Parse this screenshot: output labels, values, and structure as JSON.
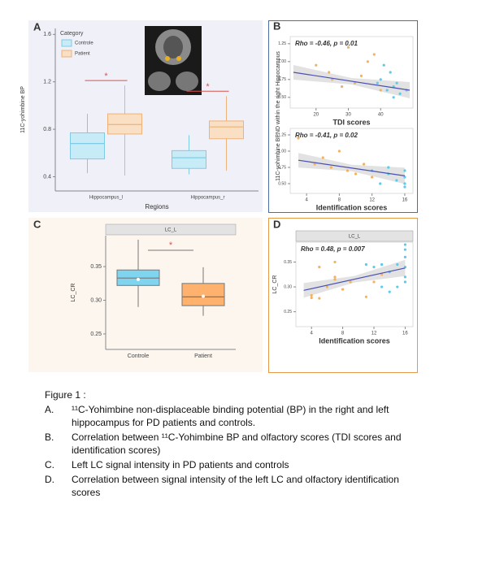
{
  "chart_data": [
    {
      "type": "boxplot",
      "panel": "A",
      "y_label": "11C-yohimbine BP",
      "x_label": "Regions",
      "categories": [
        "Hippocampus_l",
        "Hippocampus_r"
      ],
      "legend_title": "Category",
      "series": [
        {
          "name": "Controle",
          "color": "#c8ecf7",
          "edge": "#7fcbe3",
          "stats": [
            {
              "whislo": 0.43,
              "q1": 0.55,
              "med": 0.68,
              "q3": 0.77,
              "whishi": 0.93
            },
            {
              "whislo": 0.42,
              "q1": 0.47,
              "med": 0.56,
              "q3": 0.62,
              "whishi": 0.75
            }
          ]
        },
        {
          "name": "Patient",
          "color": "#f9dfc4",
          "edge": "#eeb27a",
          "stats": [
            {
              "whislo": 0.41,
              "q1": 0.76,
              "med": 0.84,
              "q3": 0.93,
              "whishi": 1.17
            },
            {
              "whislo": 0.45,
              "q1": 0.72,
              "med": 0.82,
              "q3": 0.87,
              "whishi": 1.08
            }
          ]
        }
      ],
      "significance": [
        "*",
        "*"
      ],
      "ylim": [
        0.28,
        1.65
      ],
      "yticks": [
        0.4,
        0.8,
        1.2,
        1.6
      ]
    },
    {
      "type": "scatter",
      "panel": "B",
      "annotation": "Rho = -0.46, p = 0.01",
      "x_label": "TDI scores",
      "y_label": "11C-yohimbine BPND within the right Hippocampus",
      "series": [
        {
          "color": "#f2b35c",
          "x": [
            20,
            24,
            30,
            32,
            34,
            38,
            40,
            36,
            25,
            28
          ],
          "y": [
            0.95,
            0.85,
            1.2,
            0.7,
            0.8,
            1.1,
            0.6,
            1.0,
            0.75,
            0.65
          ]
        },
        {
          "color": "#5ccbea",
          "x": [
            40,
            42,
            44,
            43,
            45,
            46,
            41,
            44,
            48,
            39
          ],
          "y": [
            0.75,
            0.6,
            0.5,
            0.85,
            0.7,
            0.55,
            0.95,
            0.65,
            0.6,
            0.7
          ]
        }
      ],
      "trend": {
        "x": [
          13,
          49
        ],
        "y": [
          0.85,
          0.6
        ]
      },
      "xlim": [
        12,
        50
      ],
      "xticks": [
        20,
        30,
        40
      ],
      "ylim": [
        0.35,
        1.35
      ],
      "yticks": [
        {
          "value": 0.5,
          "label": "0.50"
        },
        0.75,
        {
          "value": 1,
          "label": "1.00"
        },
        1.25
      ]
    },
    {
      "type": "scatter",
      "annotation": "Rho = -0.41, p = 0.02",
      "x_label": "Identification scores",
      "series": [
        {
          "color": "#f2b35c",
          "x": [
            3,
            5,
            6,
            7,
            9,
            10,
            11,
            12,
            8
          ],
          "y": [
            1.2,
            0.8,
            0.9,
            0.75,
            0.7,
            0.65,
            0.8,
            0.6,
            1.0
          ]
        },
        {
          "color": "#5ccbea",
          "x": [
            12,
            13,
            14,
            15,
            16,
            16,
            16,
            16,
            14
          ],
          "y": [
            0.7,
            0.5,
            0.65,
            0.55,
            0.5,
            0.6,
            0.7,
            0.45,
            0.75
          ]
        }
      ],
      "trend": {
        "x": [
          3,
          16
        ],
        "y": [
          0.86,
          0.62
        ]
      },
      "xlim": [
        2,
        17
      ],
      "xticks": [
        4,
        8,
        12,
        16
      ],
      "ylim": [
        0.35,
        1.35
      ],
      "yticks": [
        {
          "value": 0.5,
          "label": "0.50"
        },
        0.75,
        {
          "value": 1,
          "label": "1.00"
        },
        1.25
      ]
    },
    {
      "type": "boxplot",
      "panel": "C",
      "facet": "LC_L",
      "y_label": "LC_CR",
      "categories": [
        "Controle",
        "Patient"
      ],
      "boxes": [
        {
          "color": "#7fd4f0",
          "whislo": 0.29,
          "q1": 0.322,
          "med": 0.333,
          "q3": 0.345,
          "whishi": 0.39,
          "mean": 0.331
        },
        {
          "color": "#ffb26e",
          "whislo": 0.277,
          "q1": 0.292,
          "med": 0.305,
          "q3": 0.325,
          "whishi": 0.349,
          "mean": 0.306
        }
      ],
      "significance": "*",
      "ylim": [
        0.227,
        0.396
      ],
      "yticks": [
        {
          "value": 0.25,
          "label": "0.25"
        },
        {
          "value": 0.3,
          "label": "0.30"
        },
        {
          "value": 0.35,
          "label": "0.35"
        }
      ]
    },
    {
      "type": "scatter",
      "panel": "D",
      "facet": "LC_L",
      "annotation": "Rho = 0.48, p = 0.007",
      "y_label": "LC_CR",
      "x_label": "Identification scores",
      "series": [
        {
          "color": "#f2b35c",
          "x": [
            4,
            4,
            5,
            5,
            6,
            7,
            7,
            7,
            8,
            9,
            11,
            12,
            13
          ],
          "y": [
            0.278,
            0.283,
            0.277,
            0.34,
            0.3,
            0.315,
            0.32,
            0.35,
            0.295,
            0.31,
            0.28,
            0.31,
            0.325
          ]
        },
        {
          "color": "#5ccbea",
          "x": [
            11,
            12,
            13,
            13,
            14,
            14,
            15,
            15,
            16,
            16,
            16,
            16,
            16,
            16
          ],
          "y": [
            0.345,
            0.34,
            0.3,
            0.345,
            0.29,
            0.33,
            0.3,
            0.345,
            0.31,
            0.32,
            0.34,
            0.36,
            0.375,
            0.385
          ]
        }
      ],
      "trend": {
        "x": [
          3,
          16
        ],
        "y": [
          0.293,
          0.338
        ]
      },
      "xlim": [
        2,
        17
      ],
      "xticks": [
        4,
        8,
        12,
        16
      ],
      "ylim": [
        0.22,
        0.39
      ],
      "yticks": [
        {
          "value": 0.25,
          "label": "0.25"
        },
        {
          "value": 0.3,
          "label": "0.30"
        },
        {
          "value": 0.35,
          "label": "0.35"
        }
      ]
    }
  ],
  "caption": {
    "title": "Figure 1 :",
    "items": [
      {
        "letter": "A.",
        "text": "¹¹C-Yohimbine non-displaceable binding potential (BP) in the right and left hippocampus for PD patients and controls."
      },
      {
        "letter": "B.",
        "text": "Correlation between ¹¹C-Yohimbine BP and olfactory scores (TDI scores and identification scores)"
      },
      {
        "letter": "C.",
        "text": "Left LC signal intensity in PD patients and controls"
      },
      {
        "letter": "D.",
        "text": "Correlation between signal intensity of the left LC and olfactory identification scores"
      }
    ]
  }
}
